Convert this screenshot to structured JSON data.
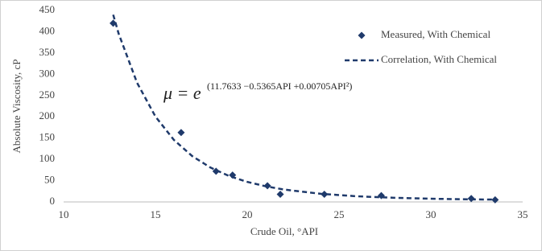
{
  "chart_data": {
    "type": "scatter",
    "x_label": "Crude Oil, °API",
    "y_label": "Absolute Viscosity, cP",
    "equation_base": "μ = e",
    "equation_exponent": "(11.7633 −0.5365API +0.00705API²)",
    "xlim": [
      10,
      35
    ],
    "xticks": [
      10,
      15,
      20,
      25,
      30,
      35
    ],
    "ylim": [
      0,
      450
    ],
    "yticks": [
      0,
      50,
      100,
      150,
      200,
      250,
      300,
      350,
      400,
      450
    ],
    "legend": "upper right",
    "series": [
      {
        "name": "Measured, With Chemical",
        "color": "#1f3a6b",
        "style": "markers",
        "x": [
          12.7,
          16.4,
          18.3,
          19.2,
          21.1,
          21.8,
          24.2,
          27.3,
          32.2,
          33.5
        ],
        "values": [
          420,
          163,
          72,
          63,
          38,
          18,
          18,
          15,
          8,
          5
        ]
      },
      {
        "name": "Correlation, With Chemical",
        "color": "#1f3a6b",
        "style": "dashed",
        "x": [
          12.7,
          13,
          14,
          15,
          16,
          17,
          18,
          19,
          20,
          21,
          22,
          24,
          26,
          28,
          30,
          32,
          33.5
        ],
        "values": [
          440,
          395,
          280,
          200.7,
          146,
          107.8,
          80.7,
          61.2,
          47.1,
          36.8,
          29.1,
          19.1,
          13.2,
          9.7,
          7.5,
          6.1,
          5.5
        ]
      }
    ]
  }
}
